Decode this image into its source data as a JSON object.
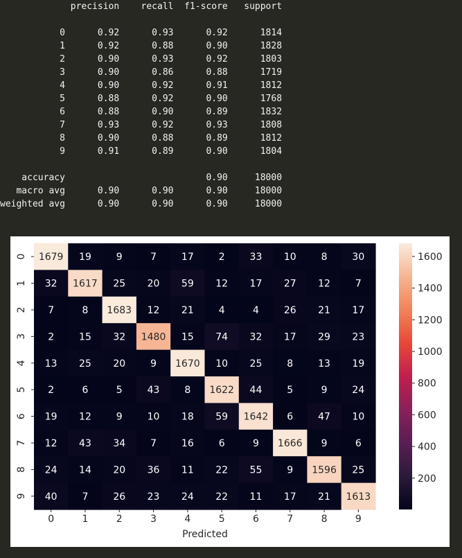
{
  "report": {
    "header": [
      "precision",
      "recall",
      "f1-score",
      "support"
    ],
    "rows": [
      {
        "label": "0",
        "precision": "0.92",
        "recall": "0.93",
        "f1": "0.92",
        "support": "1814"
      },
      {
        "label": "1",
        "precision": "0.92",
        "recall": "0.88",
        "f1": "0.90",
        "support": "1828"
      },
      {
        "label": "2",
        "precision": "0.90",
        "recall": "0.93",
        "f1": "0.92",
        "support": "1803"
      },
      {
        "label": "3",
        "precision": "0.90",
        "recall": "0.86",
        "f1": "0.88",
        "support": "1719"
      },
      {
        "label": "4",
        "precision": "0.90",
        "recall": "0.92",
        "f1": "0.91",
        "support": "1812"
      },
      {
        "label": "5",
        "precision": "0.88",
        "recall": "0.92",
        "f1": "0.90",
        "support": "1768"
      },
      {
        "label": "6",
        "precision": "0.88",
        "recall": "0.90",
        "f1": "0.89",
        "support": "1832"
      },
      {
        "label": "7",
        "precision": "0.93",
        "recall": "0.92",
        "f1": "0.93",
        "support": "1808"
      },
      {
        "label": "8",
        "precision": "0.90",
        "recall": "0.88",
        "f1": "0.89",
        "support": "1812"
      },
      {
        "label": "9",
        "precision": "0.91",
        "recall": "0.89",
        "f1": "0.90",
        "support": "1804"
      }
    ],
    "summary": [
      {
        "label": "accuracy",
        "precision": "",
        "recall": "",
        "f1": "0.90",
        "support": "18000"
      },
      {
        "label": "macro avg",
        "precision": "0.90",
        "recall": "0.90",
        "f1": "0.90",
        "support": "18000"
      },
      {
        "label": "weighted avg",
        "precision": "0.90",
        "recall": "0.90",
        "f1": "0.90",
        "support": "18000"
      }
    ]
  },
  "chart_data": {
    "type": "heatmap",
    "xlabel": "Predicted",
    "ylabel": "",
    "x_categories": [
      "0",
      "1",
      "2",
      "3",
      "4",
      "5",
      "6",
      "7",
      "8",
      "9"
    ],
    "y_categories": [
      "0",
      "1",
      "2",
      "3",
      "4",
      "5",
      "6",
      "7",
      "8",
      "9"
    ],
    "matrix": [
      [
        1679,
        19,
        9,
        7,
        17,
        2,
        33,
        10,
        8,
        30
      ],
      [
        32,
        1617,
        25,
        20,
        59,
        12,
        17,
        27,
        12,
        7
      ],
      [
        7,
        8,
        1683,
        12,
        21,
        4,
        4,
        26,
        21,
        17
      ],
      [
        2,
        15,
        32,
        1480,
        15,
        74,
        32,
        17,
        29,
        23
      ],
      [
        13,
        25,
        20,
        9,
        1670,
        10,
        25,
        8,
        13,
        19
      ],
      [
        2,
        6,
        5,
        43,
        8,
        1622,
        44,
        5,
        9,
        24
      ],
      [
        19,
        12,
        9,
        10,
        18,
        59,
        1642,
        6,
        47,
        10
      ],
      [
        12,
        43,
        34,
        7,
        16,
        6,
        9,
        1666,
        9,
        6
      ],
      [
        24,
        14,
        20,
        36,
        11,
        22,
        55,
        9,
        1596,
        25
      ],
      [
        40,
        7,
        26,
        23,
        24,
        22,
        11,
        17,
        21,
        1613
      ]
    ],
    "colorbar_ticks": [
      200,
      400,
      600,
      800,
      1000,
      1200,
      1400,
      1600
    ],
    "colorbar_range": [
      2,
      1683
    ],
    "colormap": "rocket"
  }
}
